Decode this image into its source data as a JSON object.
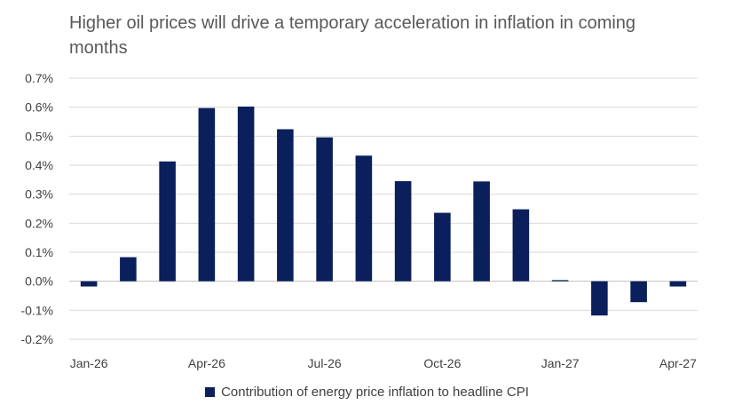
{
  "chart_data": {
    "type": "bar",
    "title": "Higher oil prices will drive a temporary acceleration in inflation in coming months",
    "xlabel": "",
    "ylabel": "",
    "ylim": [
      -0.2,
      0.7
    ],
    "y_ticks": [
      -0.2,
      -0.1,
      0.0,
      0.1,
      0.2,
      0.3,
      0.4,
      0.5,
      0.6,
      0.7
    ],
    "y_tick_labels": [
      "-0.2%",
      "-0.1%",
      "0.0%",
      "0.1%",
      "0.2%",
      "0.3%",
      "0.4%",
      "0.5%",
      "0.6%",
      "0.7%"
    ],
    "categories": [
      "Jan-26",
      "Feb-26",
      "Mar-26",
      "Apr-26",
      "May-26",
      "Jun-26",
      "Jul-26",
      "Aug-26",
      "Sep-26",
      "Oct-26",
      "Nov-26",
      "Dec-26",
      "Jan-27",
      "Feb-27",
      "Mar-27",
      "Apr-27"
    ],
    "x_tick_labels": [
      "Jan-26",
      "",
      "",
      "Apr-26",
      "",
      "",
      "Jul-26",
      "",
      "",
      "Oct-26",
      "",
      "",
      "Jan-27",
      "",
      "",
      "Apr-27"
    ],
    "series": [
      {
        "name": "Contribution of energy price inflation to headline CPI",
        "color": "#0a1f5c",
        "values": [
          -0.018,
          0.083,
          0.413,
          0.597,
          0.602,
          0.524,
          0.496,
          0.433,
          0.345,
          0.236,
          0.344,
          0.248,
          0.004,
          -0.118,
          -0.072,
          -0.018
        ]
      }
    ],
    "grid": true,
    "legend_position": "bottom"
  }
}
